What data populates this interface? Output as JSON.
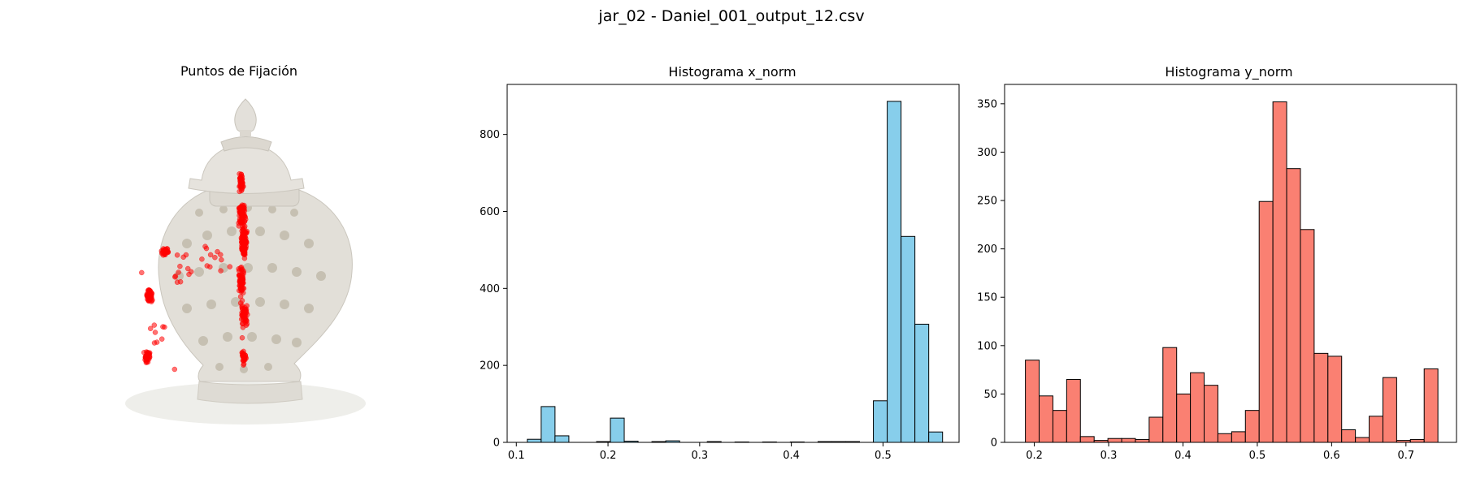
{
  "figure": {
    "suptitle": "jar_02 - Daniel_001_output_12.csv"
  },
  "panel_image": {
    "title": "Puntos de Fijación",
    "image_icon": "ceramic-ginger-jar-photo",
    "marker_color": "#ff0000"
  },
  "chart_data": [
    {
      "type": "bar",
      "title": "Histograma x_norm",
      "xlabel": "",
      "ylabel": "",
      "color": "#87ceeb",
      "edgecolor": "#000000",
      "bin_start": 0.112,
      "bin_width": 0.0151,
      "values": [
        8,
        93,
        17,
        0,
        0,
        2,
        63,
        3,
        0,
        2,
        4,
        0,
        0,
        2,
        0,
        1,
        0,
        1,
        0,
        1,
        0,
        2,
        2,
        2,
        0,
        108,
        886,
        535,
        307,
        27
      ],
      "xlim": [
        0.09,
        0.583
      ],
      "ylim": [
        0,
        930
      ],
      "xticks": [
        0.1,
        0.2,
        0.3,
        0.4,
        0.5
      ],
      "xtick_labels": [
        "0.1",
        "0.2",
        "0.3",
        "0.4",
        "0.5"
      ],
      "yticks": [
        0,
        200,
        400,
        600,
        800
      ],
      "ytick_labels": [
        "0",
        "200",
        "400",
        "600",
        "800"
      ],
      "grid": false,
      "legend": "none"
    },
    {
      "type": "bar",
      "title": "Histograma y_norm",
      "xlabel": "",
      "ylabel": "",
      "color": "#fa8072",
      "edgecolor": "#000000",
      "bin_start": 0.188,
      "bin_width": 0.0185,
      "values": [
        85,
        48,
        33,
        65,
        6,
        2,
        4,
        4,
        3,
        26,
        98,
        50,
        72,
        59,
        9,
        11,
        33,
        249,
        352,
        283,
        220,
        92,
        89,
        13,
        5,
        27,
        67,
        2,
        3,
        76
      ],
      "xlim": [
        0.16,
        0.768
      ],
      "ylim": [
        0,
        370
      ],
      "xticks": [
        0.2,
        0.3,
        0.4,
        0.5,
        0.6,
        0.7
      ],
      "xtick_labels": [
        "0.2",
        "0.3",
        "0.4",
        "0.5",
        "0.6",
        "0.7"
      ],
      "yticks": [
        0,
        50,
        100,
        150,
        200,
        250,
        300,
        350
      ],
      "ytick_labels": [
        "0",
        "50",
        "100",
        "150",
        "200",
        "250",
        "300",
        "350"
      ],
      "grid": false,
      "legend": "none"
    }
  ]
}
